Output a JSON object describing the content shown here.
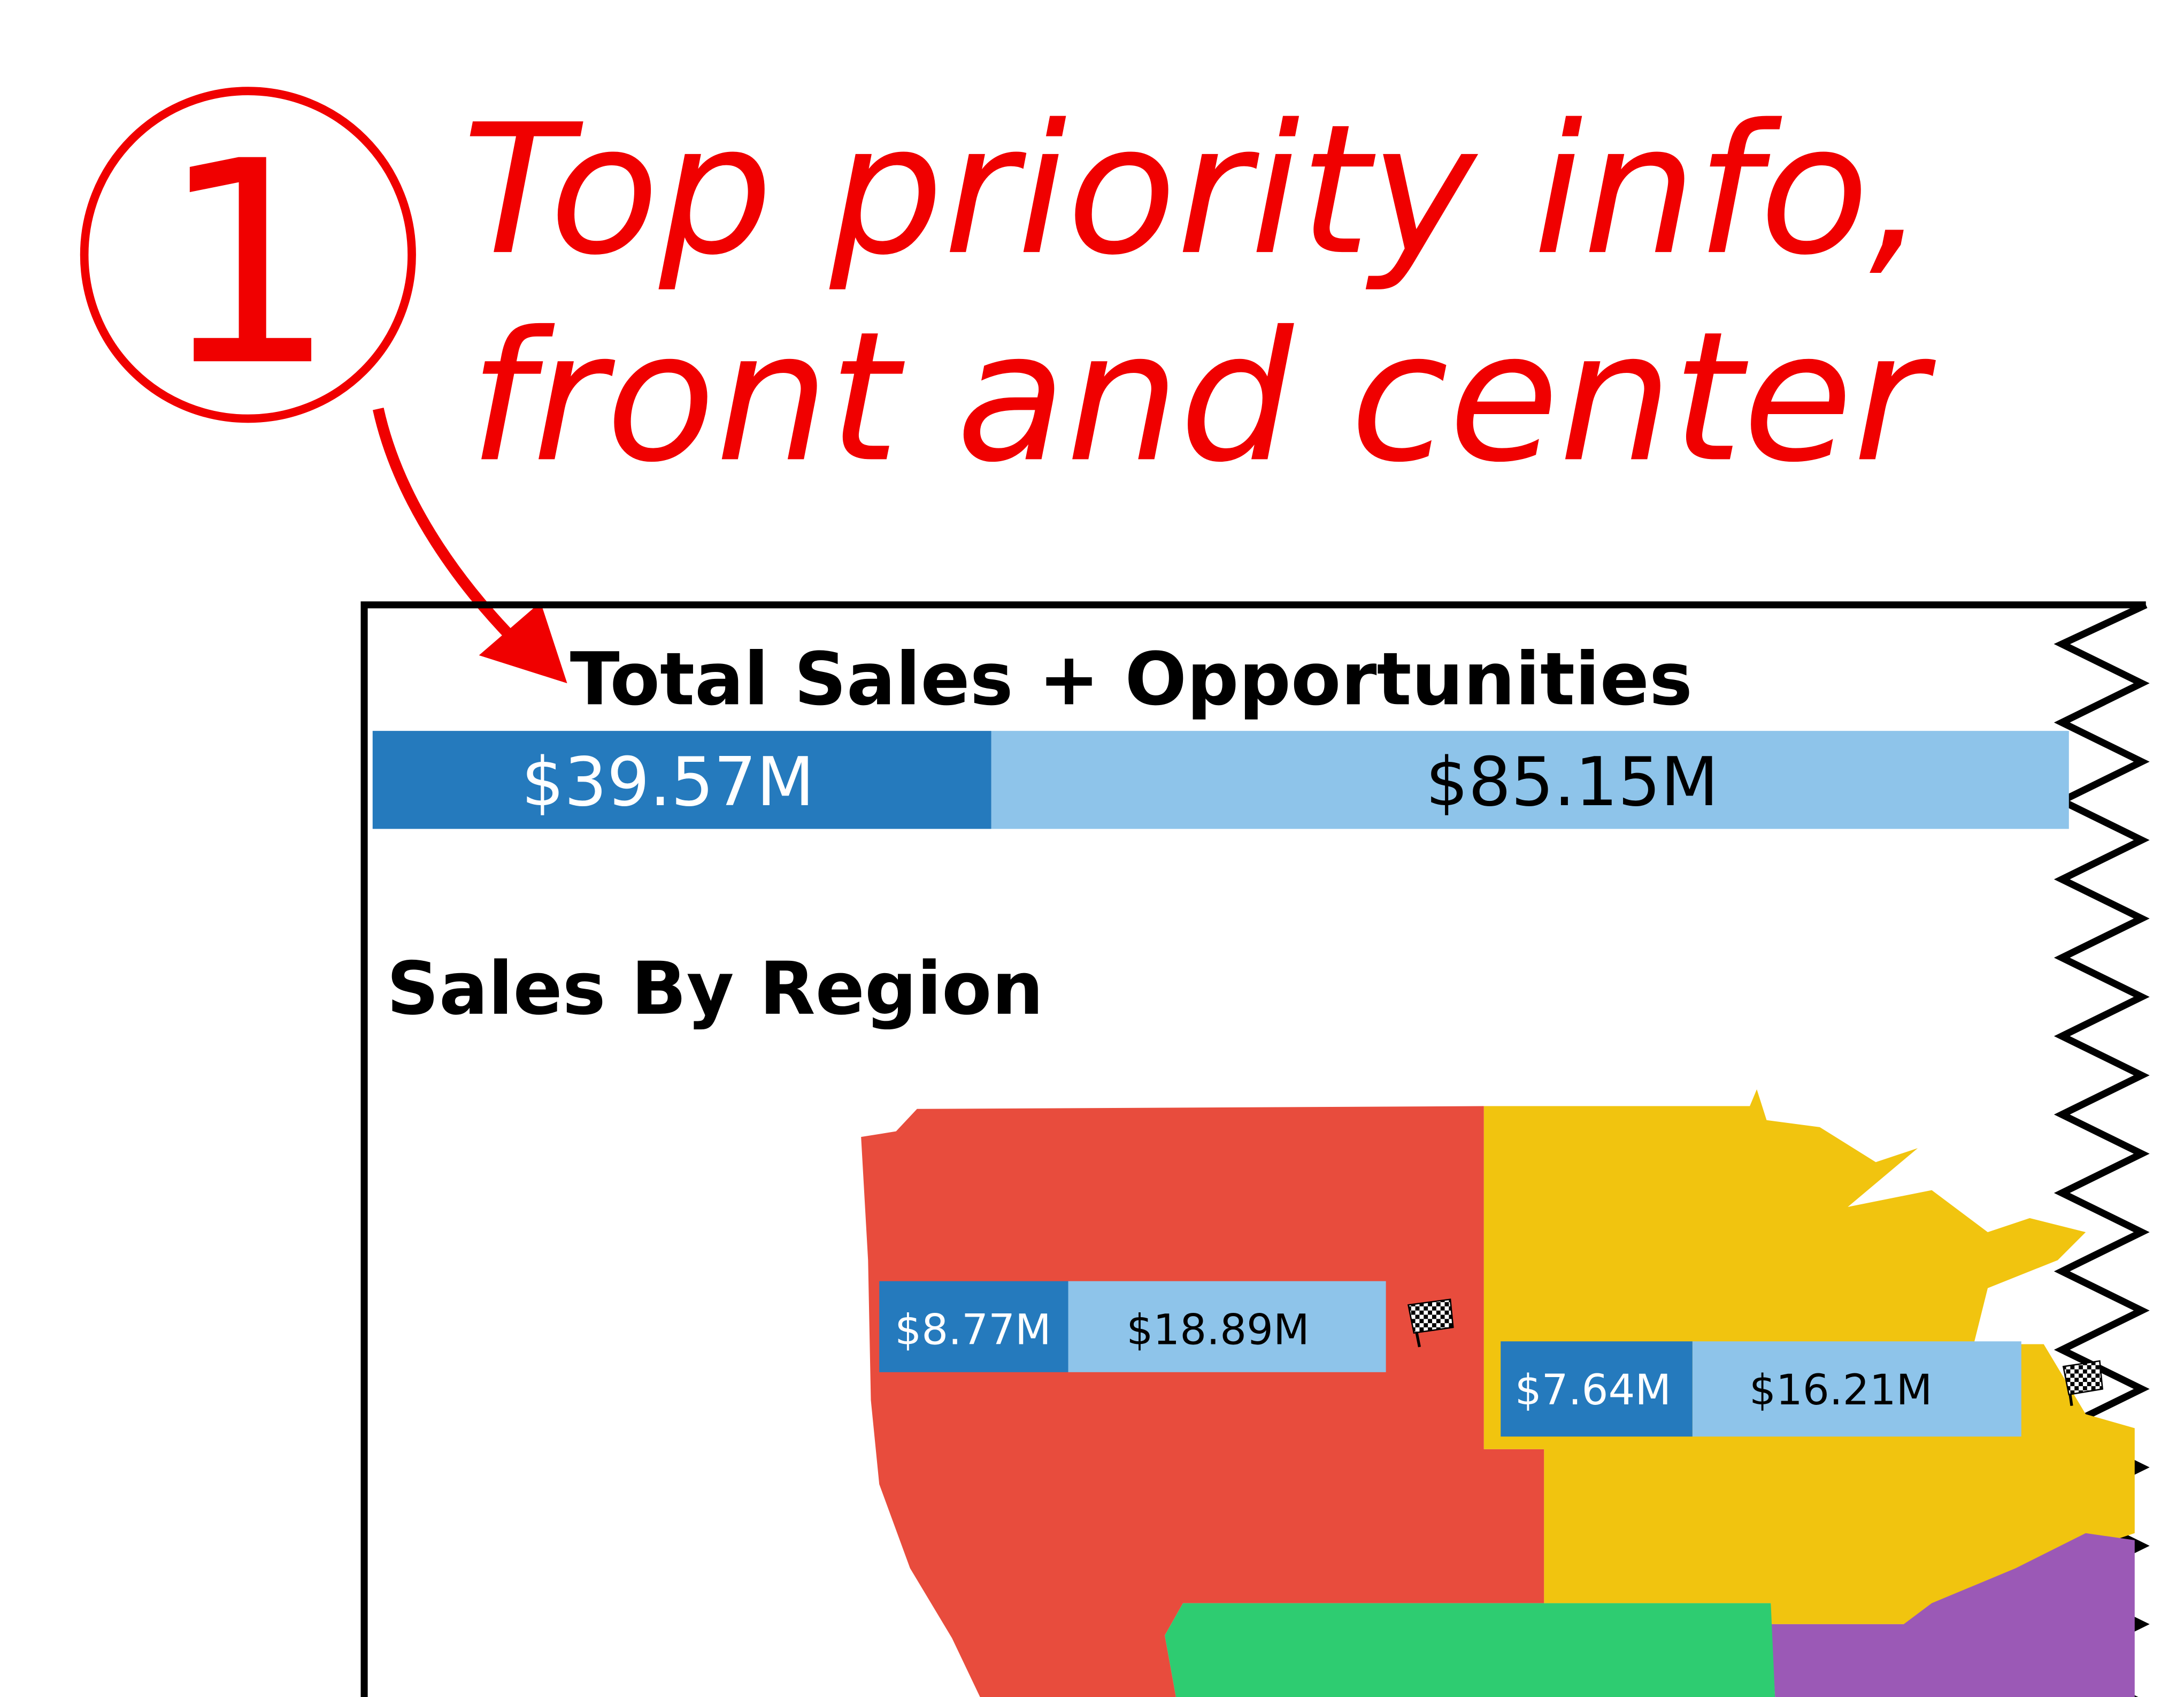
{
  "annotation": {
    "step_number": "1",
    "line1": "Top priority info,",
    "line2": "front and center",
    "color": "#f00000"
  },
  "dashboard": {
    "total": {
      "title": "Total Sales + Opportunities",
      "sales_label": "$39.57M",
      "opportunities_label": "$85.15M",
      "sales_value_m": 39.57,
      "opportunities_value_m": 85.15
    },
    "region": {
      "title": "Sales By Region",
      "west": {
        "sales_label": "$8.77M",
        "opportunities_label": "$18.89M",
        "icon": "checkered-flag-icon"
      },
      "central": {
        "sales_label": "$7.64M",
        "opportunities_label": "$16.21M",
        "icon": "checkered-flag-icon"
      }
    },
    "colors": {
      "sales": "#257abd",
      "opportunities": "#8ec4ea",
      "west_region": "#e84c3d",
      "central_region": "#f1c40f",
      "south_region": "#2ecc71",
      "east_region": "#9b59b6"
    }
  }
}
